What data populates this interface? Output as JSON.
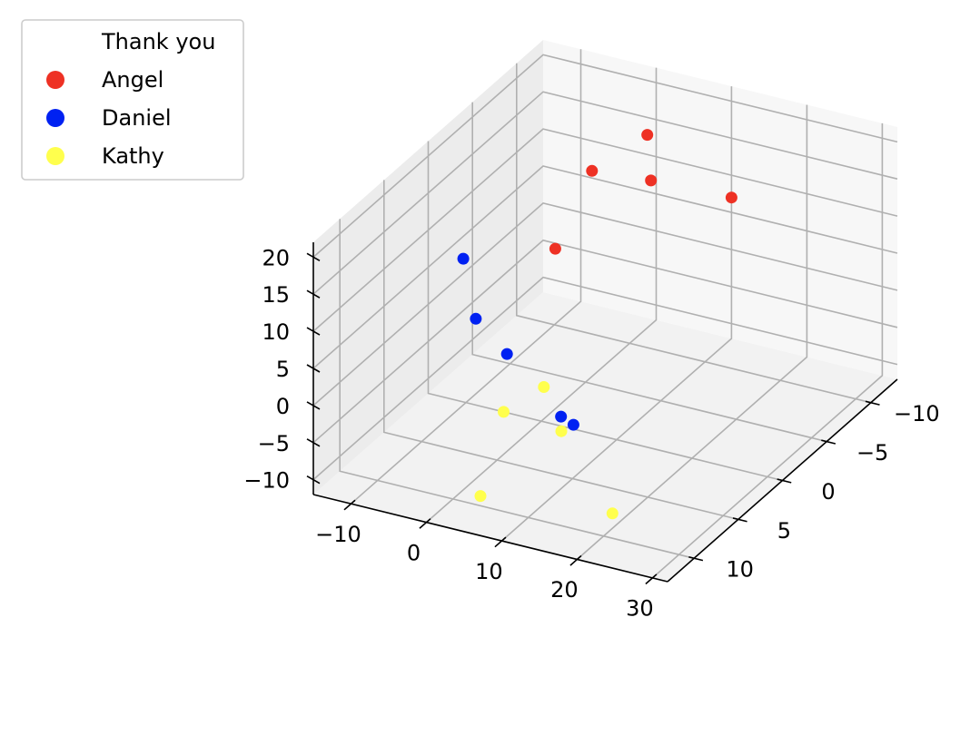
{
  "chart_data": {
    "type": "scatter",
    "projection": "3d",
    "grid": true,
    "legend": {
      "title": "Thank you",
      "placement": "upper-left"
    },
    "series": [
      {
        "name": "Angel",
        "color": "#ee3124",
        "points": [
          {
            "x": -12,
            "y": 0,
            "z": 14
          },
          {
            "x": -10,
            "y": -5,
            "z": 10
          },
          {
            "x": -9,
            "y": 4,
            "z": 12
          },
          {
            "x": -13,
            "y": 10,
            "z": 7
          },
          {
            "x": -5,
            "y": -4,
            "z": 5
          }
        ]
      },
      {
        "name": "Daniel",
        "color": "#0021f2",
        "points": [
          {
            "x": 2,
            "y": -8,
            "z": 10
          },
          {
            "x": 8,
            "y": 12,
            "z": 0
          },
          {
            "x": 4,
            "y": -4,
            "z": 5
          },
          {
            "x": 9,
            "y": 6,
            "z": 8
          },
          {
            "x": 10,
            "y": 16,
            "z": 2
          }
        ]
      },
      {
        "name": "Kathy",
        "color": "#ffff4d",
        "points": [
          {
            "x": -2,
            "y": -2,
            "z": -10
          },
          {
            "x": 0,
            "y": -5,
            "z": -12
          },
          {
            "x": 2,
            "y": 5,
            "z": -10
          },
          {
            "x": 12,
            "y": 6,
            "z": -8
          },
          {
            "x": 9,
            "y": 20,
            "z": -10
          }
        ]
      }
    ],
    "axes": {
      "x": {
        "label": "",
        "ticks": [
          -10,
          -5,
          0,
          5,
          10
        ],
        "tick_labels": [
          "−10",
          "−5",
          "0",
          "5",
          "10"
        ],
        "lim": [
          -13,
          13
        ]
      },
      "y": {
        "label": "",
        "ticks": [
          -10,
          0,
          10,
          20,
          30
        ],
        "tick_labels": [
          "−10",
          "0",
          "10",
          "20",
          "30"
        ],
        "lim": [
          -15,
          32
        ]
      },
      "z": {
        "label": "",
        "ticks": [
          -10,
          -5,
          0,
          5,
          10,
          15,
          20
        ],
        "tick_labels": [
          "−10",
          "−5",
          "0",
          "5",
          "10",
          "15",
          "20"
        ],
        "lim": [
          -12,
          22
        ]
      }
    }
  }
}
